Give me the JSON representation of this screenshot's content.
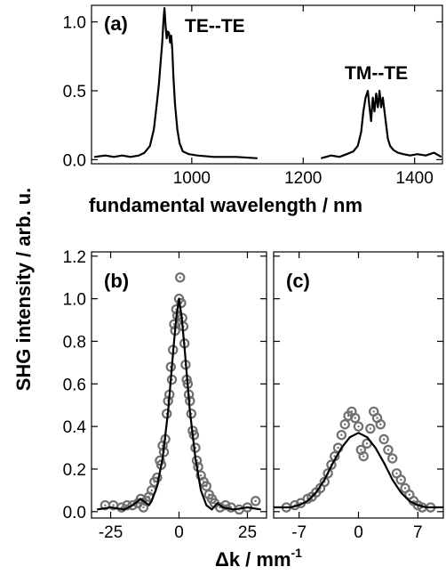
{
  "figure": {
    "ylabel_shared": "SHG intensity / arb. u."
  },
  "chart_data": [
    {
      "id": "a",
      "type": "line",
      "panel_label": "(a)",
      "xlabel": "fundamental wavelength / nm",
      "ylabel": "",
      "xlim": [
        820,
        1450
      ],
      "ylim": [
        -0.03,
        1.12
      ],
      "xticks": [
        1000,
        1200,
        1400
      ],
      "yticks": [
        0.0,
        0.5,
        1.0
      ],
      "ytick_labels": [
        "0.0",
        "0.5",
        "1.0"
      ],
      "annotations": [
        {
          "text": "TE--TE",
          "x": 1000,
          "y": 1.0
        },
        {
          "text": "TM--TE",
          "x": 1335,
          "y": 0.58
        }
      ],
      "series": [
        {
          "points": [
            [
              825,
              0.02
            ],
            [
              845,
              0.03
            ],
            [
              860,
              0.02
            ],
            [
              875,
              0.03
            ],
            [
              890,
              0.02
            ],
            [
              905,
              0.03
            ],
            [
              915,
              0.05
            ],
            [
              925,
              0.1
            ],
            [
              932,
              0.22
            ],
            [
              937,
              0.4
            ],
            [
              941,
              0.55
            ],
            [
              944,
              0.7
            ],
            [
              947,
              0.85
            ],
            [
              949,
              1.0
            ],
            [
              951,
              1.1
            ],
            [
              953,
              0.97
            ],
            [
              955,
              0.88
            ],
            [
              957,
              0.93
            ],
            [
              959,
              0.92
            ],
            [
              961,
              0.85
            ],
            [
              963,
              0.9
            ],
            [
              965,
              0.8
            ],
            [
              967,
              0.6
            ],
            [
              970,
              0.4
            ],
            [
              974,
              0.22
            ],
            [
              978,
              0.12
            ],
            [
              984,
              0.06
            ],
            [
              995,
              0.04
            ],
            [
              1010,
              0.03
            ],
            [
              1040,
              0.02
            ],
            [
              1080,
              0.02
            ],
            [
              1118,
              0.01
            ]
          ]
        },
        {
          "points": [
            [
              1232,
              0.01
            ],
            [
              1250,
              0.03
            ],
            [
              1265,
              0.02
            ],
            [
              1278,
              0.04
            ],
            [
              1290,
              0.06
            ],
            [
              1298,
              0.1
            ],
            [
              1304,
              0.2
            ],
            [
              1308,
              0.35
            ],
            [
              1312,
              0.45
            ],
            [
              1316,
              0.5
            ],
            [
              1319,
              0.38
            ],
            [
              1322,
              0.28
            ],
            [
              1325,
              0.45
            ],
            [
              1328,
              0.35
            ],
            [
              1331,
              0.48
            ],
            [
              1334,
              0.38
            ],
            [
              1337,
              0.5
            ],
            [
              1340,
              0.38
            ],
            [
              1343,
              0.45
            ],
            [
              1346,
              0.35
            ],
            [
              1349,
              0.25
            ],
            [
              1352,
              0.15
            ],
            [
              1356,
              0.1
            ],
            [
              1362,
              0.07
            ],
            [
              1370,
              0.05
            ],
            [
              1380,
              0.04
            ],
            [
              1392,
              0.03
            ],
            [
              1405,
              0.04
            ],
            [
              1420,
              0.03
            ],
            [
              1435,
              0.05
            ],
            [
              1448,
              0.02
            ]
          ]
        }
      ]
    },
    {
      "id": "b",
      "type": "scatter",
      "panel_label": "(b)",
      "xlabel": "",
      "ylabel": "",
      "xlim": [
        -32,
        32
      ],
      "ylim": [
        -0.03,
        1.22
      ],
      "xticks": [
        -25,
        0,
        25
      ],
      "yticks": [
        0.0,
        0.2,
        0.4,
        0.6,
        0.8,
        1.0,
        1.2
      ],
      "ytick_labels": [
        "0.0",
        "0.2",
        "0.4",
        "0.6",
        "0.8",
        "1.0",
        "1.2"
      ],
      "series": [
        {
          "kind": "points",
          "points": [
            [
              -27,
              0.03
            ],
            [
              -24,
              0.03
            ],
            [
              -21,
              0.02
            ],
            [
              -19,
              0.03
            ],
            [
              -17,
              0.03
            ],
            [
              -15,
              0.04
            ],
            [
              -14,
              0.06
            ],
            [
              -13,
              0.02
            ],
            [
              -12,
              0.05
            ],
            [
              -11,
              0.07
            ],
            [
              -10,
              0.1
            ],
            [
              -9,
              0.14
            ],
            [
              -8,
              0.16
            ],
            [
              -7,
              0.24
            ],
            [
              -6.5,
              0.22
            ],
            [
              -6,
              0.31
            ],
            [
              -5.5,
              0.28
            ],
            [
              -5,
              0.34
            ],
            [
              -4.5,
              0.46
            ],
            [
              -4,
              0.52
            ],
            [
              -3.5,
              0.55
            ],
            [
              -3,
              0.68
            ],
            [
              -2.6,
              0.62
            ],
            [
              -2.2,
              0.76
            ],
            [
              -1.8,
              0.88
            ],
            [
              -1.4,
              0.85
            ],
            [
              -1,
              0.95
            ],
            [
              -0.6,
              0.92
            ],
            [
              0,
              1.0
            ],
            [
              0.4,
              1.1
            ],
            [
              0.8,
              0.98
            ],
            [
              1.2,
              0.91
            ],
            [
              1.6,
              0.87
            ],
            [
              2,
              0.79
            ],
            [
              2.4,
              0.69
            ],
            [
              2.8,
              0.62
            ],
            [
              3.2,
              0.6
            ],
            [
              3.6,
              0.55
            ],
            [
              4,
              0.52
            ],
            [
              4.5,
              0.46
            ],
            [
              5,
              0.38
            ],
            [
              5.5,
              0.36
            ],
            [
              6,
              0.3
            ],
            [
              6.5,
              0.24
            ],
            [
              7,
              0.21
            ],
            [
              8,
              0.17
            ],
            [
              9,
              0.14
            ],
            [
              10,
              0.12
            ],
            [
              11,
              0.08
            ],
            [
              12,
              0.06
            ],
            [
              13,
              0.04
            ],
            [
              15,
              0.02
            ],
            [
              17,
              0.03
            ],
            [
              19,
              0.02
            ],
            [
              22,
              0.01
            ],
            [
              25,
              0.02
            ],
            [
              28,
              0.05
            ]
          ]
        },
        {
          "kind": "fit",
          "points": [
            [
              -30,
              0.01
            ],
            [
              -25,
              0.02
            ],
            [
              -20,
              0.01
            ],
            [
              -17,
              0.03
            ],
            [
              -14,
              0.06
            ],
            [
              -12,
              0.04
            ],
            [
              -11,
              0.03
            ],
            [
              -10,
              0.05
            ],
            [
              -8,
              0.12
            ],
            [
              -6,
              0.25
            ],
            [
              -4,
              0.47
            ],
            [
              -2,
              0.77
            ],
            [
              -1,
              0.91
            ],
            [
              0,
              1.0
            ],
            [
              1,
              0.91
            ],
            [
              2,
              0.77
            ],
            [
              4,
              0.47
            ],
            [
              6,
              0.25
            ],
            [
              8,
              0.1
            ],
            [
              10,
              0.03
            ],
            [
              12,
              0.01
            ],
            [
              14,
              0.04
            ],
            [
              16,
              0.02
            ],
            [
              20,
              0.01
            ],
            [
              25,
              0.02
            ],
            [
              30,
              0.01
            ]
          ]
        }
      ]
    },
    {
      "id": "c",
      "type": "scatter",
      "panel_label": "(c)",
      "xlabel": "",
      "ylabel": "",
      "xlim": [
        -10,
        10
      ],
      "ylim": [
        -0.03,
        1.22
      ],
      "xticks": [
        -7,
        0,
        7
      ],
      "yticks": [
        0.0,
        0.2,
        0.4,
        0.6,
        0.8,
        1.0,
        1.2
      ],
      "series": [
        {
          "kind": "points",
          "points": [
            [
              -8.5,
              0.02
            ],
            [
              -7.5,
              0.03
            ],
            [
              -6.8,
              0.04
            ],
            [
              -6,
              0.06
            ],
            [
              -5.5,
              0.07
            ],
            [
              -5,
              0.09
            ],
            [
              -4.5,
              0.11
            ],
            [
              -4,
              0.14
            ],
            [
              -3.6,
              0.18
            ],
            [
              -3.2,
              0.22
            ],
            [
              -2.8,
              0.26
            ],
            [
              -2.4,
              0.3
            ],
            [
              -2,
              0.36
            ],
            [
              -1.6,
              0.41
            ],
            [
              -1.2,
              0.45
            ],
            [
              -0.8,
              0.47
            ],
            [
              -0.4,
              0.44
            ],
            [
              0,
              0.4
            ],
            [
              0.3,
              0.29
            ],
            [
              0.6,
              0.26
            ],
            [
              1,
              0.32
            ],
            [
              1.4,
              0.39
            ],
            [
              1.8,
              0.47
            ],
            [
              2.2,
              0.44
            ],
            [
              2.6,
              0.41
            ],
            [
              3,
              0.34
            ],
            [
              3.5,
              0.29
            ],
            [
              4,
              0.25
            ],
            [
              4.5,
              0.18
            ],
            [
              5,
              0.15
            ],
            [
              5.5,
              0.11
            ],
            [
              6,
              0.08
            ],
            [
              6.5,
              0.05
            ],
            [
              7,
              0.03
            ],
            [
              7.5,
              0.02
            ],
            [
              8.5,
              0.02
            ]
          ]
        },
        {
          "kind": "fit",
          "points": [
            [
              -10,
              0.02
            ],
            [
              -8,
              0.02
            ],
            [
              -7,
              0.03
            ],
            [
              -6,
              0.05
            ],
            [
              -5,
              0.09
            ],
            [
              -4,
              0.15
            ],
            [
              -3,
              0.23
            ],
            [
              -2,
              0.3
            ],
            [
              -1,
              0.35
            ],
            [
              0,
              0.37
            ],
            [
              1,
              0.35
            ],
            [
              2,
              0.3
            ],
            [
              3,
              0.23
            ],
            [
              4,
              0.15
            ],
            [
              5,
              0.09
            ],
            [
              6,
              0.05
            ],
            [
              7,
              0.03
            ],
            [
              8,
              0.02
            ],
            [
              10,
              0.02
            ]
          ]
        }
      ]
    }
  ],
  "bottom": {
    "xlabel_delta": "Δk / mm",
    "xlabel_sup": "-1",
    "xtick_labels_b": [
      "-25",
      "0",
      "25"
    ],
    "xtick_labels_c": [
      "-7",
      "0",
      "7"
    ]
  },
  "top_xtick_labels": [
    "1000",
    "1200",
    "1400"
  ]
}
